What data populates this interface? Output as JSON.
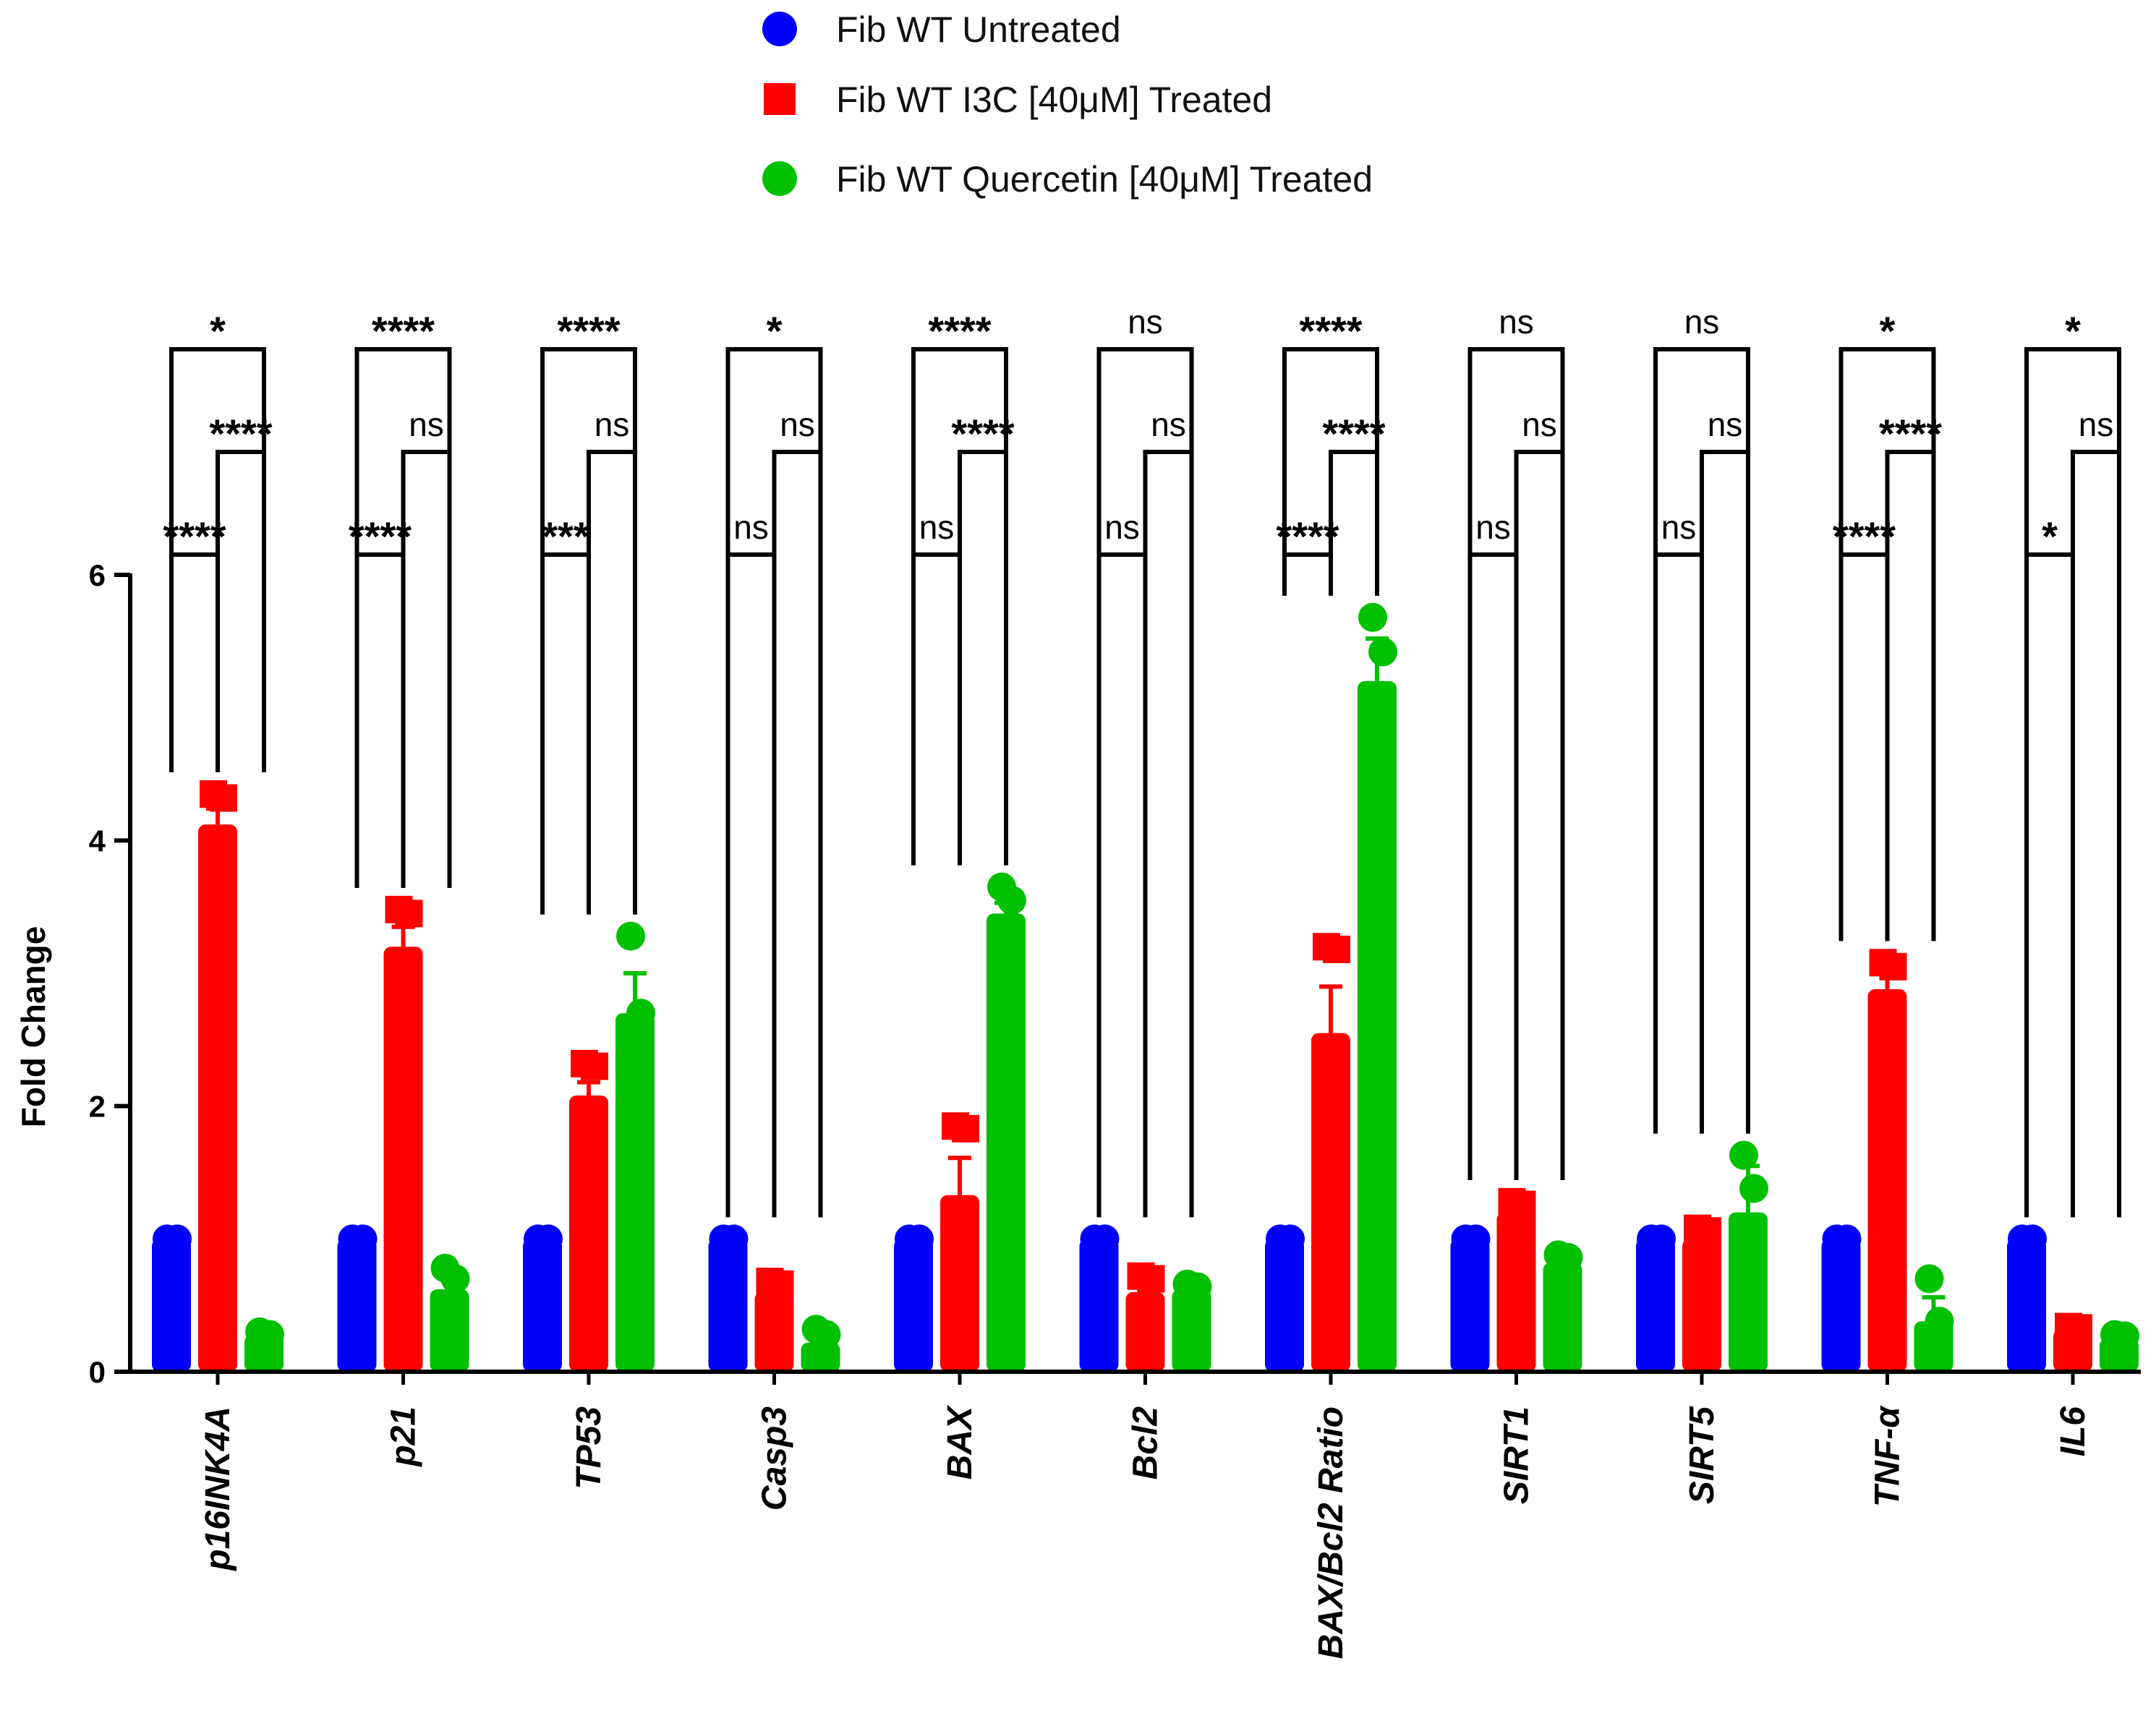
{
  "chart_data": {
    "type": "bar",
    "ylabel": "Fold Change",
    "ylim": [
      0,
      6
    ],
    "yticks": [
      0,
      2,
      4,
      6
    ],
    "grid": false,
    "legend_position": "top",
    "categories": [
      "p16INK4A",
      "p21",
      "TP53",
      "Casp3",
      "BAX",
      "Bcl2",
      "BAX/Bcl2 Ratio",
      "SIRT1",
      "SIRT5",
      "TNF-α",
      "IL6"
    ],
    "series": [
      {
        "name": "Fib WT Untreated",
        "color": "#0000ff",
        "marker": "circle",
        "values": [
          1,
          1,
          1,
          1,
          1,
          1,
          1,
          1,
          1,
          1,
          1
        ],
        "errors": [
          0,
          0,
          0,
          0,
          0,
          0,
          0,
          0,
          0,
          0,
          0
        ],
        "points": [
          [
            1,
            1
          ],
          [
            1,
            1
          ],
          [
            1,
            1
          ],
          [
            1,
            1
          ],
          [
            1,
            1
          ],
          [
            1,
            1
          ],
          [
            1,
            1
          ],
          [
            1,
            1
          ],
          [
            1,
            1
          ],
          [
            1,
            1
          ],
          [
            1,
            1
          ]
        ]
      },
      {
        "name": "Fib WT I3C [40μM] Treated",
        "color": "#ff0000",
        "marker": "square",
        "values": [
          4.12,
          3.2,
          2.08,
          0.6,
          1.33,
          0.6,
          2.55,
          1.2,
          1.0,
          2.88,
          0.32
        ],
        "errors": [
          0.12,
          0.15,
          0.1,
          0.05,
          0.28,
          0.06,
          0.35,
          0.05,
          0.06,
          0.12,
          0.02
        ],
        "points": [
          [
            4.35,
            4.32
          ],
          [
            3.48,
            3.45
          ],
          [
            2.32,
            2.3
          ],
          [
            0.68,
            0.66
          ],
          [
            1.85,
            1.83
          ],
          [
            0.72,
            0.7
          ],
          [
            3.2,
            3.18
          ],
          [
            1.28,
            1.26
          ],
          [
            1.08,
            1.06
          ],
          [
            3.08,
            3.05
          ],
          [
            0.34,
            0.33
          ]
        ]
      },
      {
        "name": "Fib WT Quercetin [40μM] Treated",
        "color": "#00c000",
        "marker": "circle",
        "values": [
          0.28,
          0.62,
          2.7,
          0.22,
          3.45,
          0.62,
          5.2,
          0.82,
          1.2,
          0.38,
          0.25
        ],
        "errors": [
          0.02,
          0.08,
          0.3,
          0.05,
          0.08,
          0.03,
          0.32,
          0.04,
          0.35,
          0.18,
          0.03
        ],
        "points": [
          [
            0.3,
            0.28
          ],
          [
            0.78,
            0.7
          ],
          [
            3.28,
            2.7
          ],
          [
            0.32,
            0.28
          ],
          [
            3.65,
            3.55
          ],
          [
            0.66,
            0.64
          ],
          [
            5.68,
            5.42
          ],
          [
            0.88,
            0.86
          ],
          [
            1.63,
            1.38
          ],
          [
            0.7,
            0.38
          ],
          [
            0.28,
            0.27
          ]
        ]
      }
    ],
    "comparisons": {
      "untreated_vs_quercetin": [
        "*",
        "****",
        "****",
        "*",
        "****",
        "ns",
        "****",
        "ns",
        "ns",
        "*",
        "*"
      ],
      "i3c_vs_quercetin": [
        "****",
        "ns",
        "ns",
        "ns",
        "****",
        "ns",
        "****",
        "ns",
        "ns",
        "****",
        "ns"
      ],
      "untreated_vs_i3c": [
        "****",
        "****",
        "***",
        "ns",
        "ns",
        "ns",
        "****",
        "ns",
        "ns",
        "****",
        "*"
      ]
    }
  }
}
